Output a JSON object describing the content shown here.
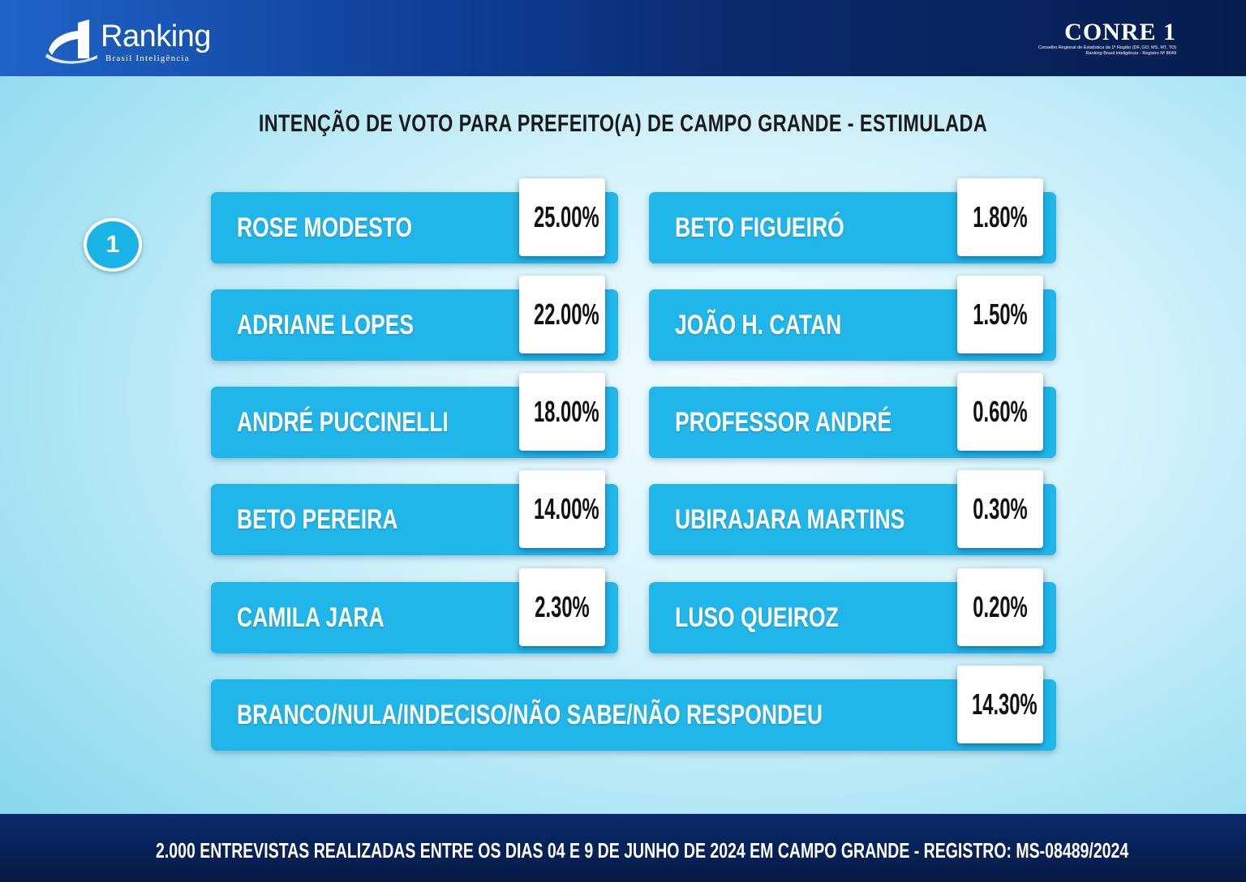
{
  "header": {
    "brand_name": "Ranking",
    "brand_tagline": "Brasil Inteligência",
    "conre_title": "CONRE 1",
    "conre_line1": "Conselho Regional de Estatística da 1ª Região (DF, GO, MS, MT, TO)",
    "conre_line2": "Ranking Brasil Inteligência - Registro Nº 8649"
  },
  "title": "INTENÇÃO DE VOTO PARA PREFEITO(A) DE CAMPO GRANDE - ESTIMULADA",
  "badge": "1",
  "left_column": [
    {
      "name": "ROSE MODESTO",
      "percent": "25.00%"
    },
    {
      "name": "ADRIANE LOPES",
      "percent": "22.00%"
    },
    {
      "name": "ANDRÉ PUCCINELLI",
      "percent": "18.00%"
    },
    {
      "name": "BETO PEREIRA",
      "percent": "14.00%"
    },
    {
      "name": "CAMILA JARA",
      "percent": "2.30%"
    }
  ],
  "right_column": [
    {
      "name": "BETO FIGUEIRÓ",
      "percent": "1.80%"
    },
    {
      "name": "JOÃO H. CATAN",
      "percent": "1.50%"
    },
    {
      "name": "PROFESSOR ANDRÉ",
      "percent": "0.60%"
    },
    {
      "name": "UBIRAJARA MARTINS",
      "percent": "0.30%"
    },
    {
      "name": "LUSO QUEIROZ",
      "percent": "0.20%"
    }
  ],
  "bottom_row": {
    "name": "BRANCO/NULA/INDECISO/NÃO SABE/NÃO RESPONDEU",
    "percent": "14.30%"
  },
  "footer": "2.000 ENTREVISTAS REALIZADAS ENTRE OS DIAS 04 E 9 DE JUNHO DE 2024 EM CAMPO GRANDE - REGISTRO: MS-08489/2024",
  "colors": {
    "card": "#20b6ea",
    "header": "#0a2a6c",
    "badge": "#1ab3e6"
  }
}
